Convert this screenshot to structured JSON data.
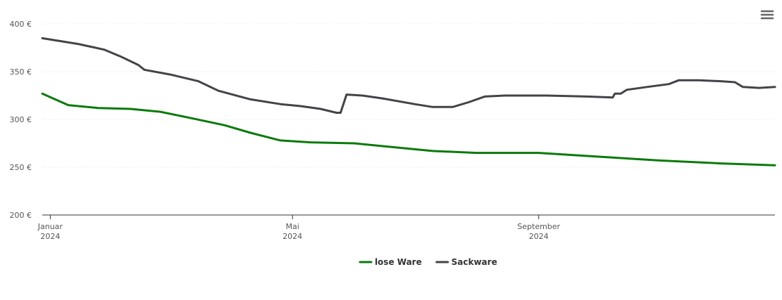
{
  "menu": {
    "icon": "hamburger-menu-icon"
  },
  "colors": {
    "lose_ware": "#0a7a0a",
    "sackware": "#434348",
    "axis": "#333333",
    "grid": "#e6e6e6",
    "menu_icon": "#666666"
  },
  "chart_data": {
    "type": "line",
    "title": "",
    "xlabel": "",
    "ylabel": "",
    "ylim": [
      200,
      400
    ],
    "y_ticks": [
      {
        "value": 200,
        "label": "200 €"
      },
      {
        "value": 250,
        "label": "250 €"
      },
      {
        "value": 300,
        "label": "300 €"
      },
      {
        "value": 350,
        "label": "350 €"
      },
      {
        "value": 400,
        "label": "400 €"
      }
    ],
    "xlim": [
      "2023-12-28",
      "2024-12-28"
    ],
    "x_ticks": [
      {
        "date": "2024-01-01",
        "month": "Januar",
        "year": "2024"
      },
      {
        "date": "2024-05-01",
        "month": "Mai",
        "year": "2024"
      },
      {
        "date": "2024-09-01",
        "month": "September",
        "year": "2024"
      }
    ],
    "grid": true,
    "legend_position": "bottom-center",
    "series": [
      {
        "name": "lose Ware",
        "color": "#0a7a0a",
        "points": [
          [
            "2023-12-28",
            327
          ],
          [
            "2024-01-10",
            315
          ],
          [
            "2024-01-25",
            312
          ],
          [
            "2024-02-10",
            311
          ],
          [
            "2024-02-25",
            308
          ],
          [
            "2024-03-10",
            302
          ],
          [
            "2024-03-28",
            294
          ],
          [
            "2024-04-10",
            286
          ],
          [
            "2024-04-25",
            278
          ],
          [
            "2024-05-10",
            276
          ],
          [
            "2024-06-01",
            275
          ],
          [
            "2024-06-20",
            271
          ],
          [
            "2024-07-10",
            267
          ],
          [
            "2024-08-01",
            265
          ],
          [
            "2024-09-01",
            265
          ],
          [
            "2024-10-01",
            261
          ],
          [
            "2024-11-01",
            257
          ],
          [
            "2024-12-01",
            254
          ],
          [
            "2024-12-28",
            252
          ]
        ]
      },
      {
        "name": "Sackware",
        "color": "#434348",
        "points": [
          [
            "2023-12-28",
            385
          ],
          [
            "2024-01-15",
            379
          ],
          [
            "2024-01-28",
            373
          ],
          [
            "2024-02-05",
            366
          ],
          [
            "2024-02-14",
            357
          ],
          [
            "2024-02-17",
            352
          ],
          [
            "2024-03-01",
            347
          ],
          [
            "2024-03-15",
            340
          ],
          [
            "2024-03-25",
            330
          ],
          [
            "2024-04-10",
            321
          ],
          [
            "2024-04-25",
            316
          ],
          [
            "2024-05-05",
            314
          ],
          [
            "2024-05-15",
            311
          ],
          [
            "2024-05-23",
            307
          ],
          [
            "2024-05-25",
            307
          ],
          [
            "2024-05-28",
            326
          ],
          [
            "2024-06-05",
            325
          ],
          [
            "2024-06-15",
            322
          ],
          [
            "2024-07-01",
            316
          ],
          [
            "2024-07-10",
            313
          ],
          [
            "2024-07-20",
            313
          ],
          [
            "2024-07-28",
            318
          ],
          [
            "2024-08-05",
            324
          ],
          [
            "2024-08-15",
            325
          ],
          [
            "2024-09-05",
            325
          ],
          [
            "2024-09-25",
            324
          ],
          [
            "2024-10-08",
            323
          ],
          [
            "2024-10-09",
            327
          ],
          [
            "2024-10-12",
            327
          ],
          [
            "2024-10-15",
            331
          ],
          [
            "2024-10-25",
            334
          ],
          [
            "2024-11-05",
            337
          ],
          [
            "2024-11-10",
            341
          ],
          [
            "2024-11-20",
            341
          ],
          [
            "2024-12-01",
            340
          ],
          [
            "2024-12-08",
            339
          ],
          [
            "2024-12-12",
            334
          ],
          [
            "2024-12-20",
            333
          ],
          [
            "2024-12-28",
            334
          ]
        ]
      }
    ]
  }
}
